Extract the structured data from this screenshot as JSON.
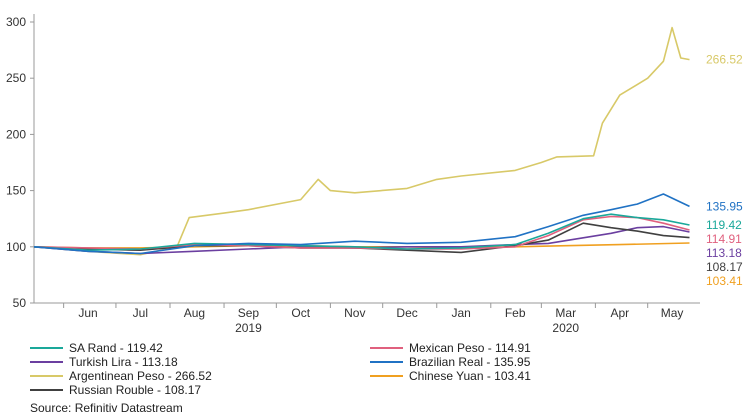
{
  "chart_data": {
    "type": "line",
    "x_months": [
      "Jun",
      "Jul",
      "Aug",
      "Sep",
      "Oct",
      "Nov",
      "Dec",
      "Jan",
      "Feb",
      "Mar",
      "Apr",
      "May"
    ],
    "x_years": [
      "2019",
      "2020"
    ],
    "ylim": [
      50,
      300
    ],
    "yticks": [
      "50",
      "100",
      "150",
      "200",
      "250",
      "300"
    ],
    "grid": false,
    "legend_position": "bottom",
    "series": [
      {
        "name": "SA Rand - 119.42",
        "end_label": "119.42",
        "color": "#1aa89a",
        "points": [
          [
            "2019-05-15",
            100
          ],
          [
            "2019-06-15",
            97
          ],
          [
            "2019-07-15",
            98
          ],
          [
            "2019-08-15",
            103
          ],
          [
            "2019-09-15",
            102
          ],
          [
            "2019-10-15",
            101
          ],
          [
            "2019-11-15",
            100
          ],
          [
            "2019-12-15",
            98
          ],
          [
            "2020-01-15",
            99
          ],
          [
            "2020-02-15",
            102
          ],
          [
            "2020-03-05",
            112
          ],
          [
            "2020-03-25",
            125
          ],
          [
            "2020-04-10",
            129
          ],
          [
            "2020-04-25",
            126
          ],
          [
            "2020-05-10",
            124
          ],
          [
            "2020-05-25",
            119.42
          ]
        ]
      },
      {
        "name": "Mexican Peso - 114.91",
        "end_label": "114.91",
        "color": "#e0607e",
        "points": [
          [
            "2019-05-15",
            100
          ],
          [
            "2019-06-15",
            99
          ],
          [
            "2019-07-15",
            98
          ],
          [
            "2019-08-15",
            102
          ],
          [
            "2019-09-15",
            101
          ],
          [
            "2019-10-15",
            99
          ],
          [
            "2019-11-15",
            99
          ],
          [
            "2019-12-15",
            98
          ],
          [
            "2020-01-15",
            98
          ],
          [
            "2020-02-15",
            100
          ],
          [
            "2020-03-05",
            110
          ],
          [
            "2020-03-25",
            124
          ],
          [
            "2020-04-10",
            127
          ],
          [
            "2020-04-25",
            126
          ],
          [
            "2020-05-10",
            121
          ],
          [
            "2020-05-25",
            114.91
          ]
        ]
      },
      {
        "name": "Turkish Lira - 113.18",
        "end_label": "113.18",
        "color": "#6b3fa0",
        "points": [
          [
            "2019-05-15",
            100
          ],
          [
            "2019-06-15",
            96
          ],
          [
            "2019-07-15",
            94
          ],
          [
            "2019-08-15",
            96
          ],
          [
            "2019-09-15",
            98
          ],
          [
            "2019-10-15",
            100
          ],
          [
            "2019-11-15",
            99
          ],
          [
            "2019-12-15",
            100
          ],
          [
            "2020-01-15",
            100
          ],
          [
            "2020-02-15",
            102
          ],
          [
            "2020-03-05",
            103
          ],
          [
            "2020-03-25",
            108
          ],
          [
            "2020-04-10",
            112
          ],
          [
            "2020-04-25",
            117
          ],
          [
            "2020-05-10",
            118
          ],
          [
            "2020-05-25",
            113.18
          ]
        ]
      },
      {
        "name": "Brazilian Real - 135.95",
        "end_label": "135.95",
        "color": "#2072c4",
        "points": [
          [
            "2019-05-15",
            100
          ],
          [
            "2019-06-15",
            96
          ],
          [
            "2019-07-15",
            94
          ],
          [
            "2019-08-15",
            101
          ],
          [
            "2019-09-15",
            103
          ],
          [
            "2019-10-15",
            102
          ],
          [
            "2019-11-15",
            105
          ],
          [
            "2019-12-15",
            103
          ],
          [
            "2020-01-15",
            104
          ],
          [
            "2020-02-15",
            109
          ],
          [
            "2020-03-05",
            118
          ],
          [
            "2020-03-25",
            128
          ],
          [
            "2020-04-10",
            133
          ],
          [
            "2020-04-25",
            138
          ],
          [
            "2020-05-10",
            147
          ],
          [
            "2020-05-25",
            135.95
          ]
        ]
      },
      {
        "name": "Argentinean Peso - 266.52",
        "end_label": "266.52",
        "color": "#d8c968",
        "points": [
          [
            "2019-05-15",
            100
          ],
          [
            "2019-06-15",
            96
          ],
          [
            "2019-07-15",
            93
          ],
          [
            "2019-08-05",
            100
          ],
          [
            "2019-08-12",
            126
          ],
          [
            "2019-09-01",
            130
          ],
          [
            "2019-09-15",
            133
          ],
          [
            "2019-10-15",
            142
          ],
          [
            "2019-10-25",
            160
          ],
          [
            "2019-11-01",
            150
          ],
          [
            "2019-11-15",
            148
          ],
          [
            "2019-12-15",
            152
          ],
          [
            "2020-01-01",
            160
          ],
          [
            "2020-01-15",
            163
          ],
          [
            "2020-02-15",
            168
          ],
          [
            "2020-03-01",
            175
          ],
          [
            "2020-03-10",
            180
          ],
          [
            "2020-03-31",
            181
          ],
          [
            "2020-04-05",
            210
          ],
          [
            "2020-04-15",
            235
          ],
          [
            "2020-05-01",
            250
          ],
          [
            "2020-05-10",
            265
          ],
          [
            "2020-05-15",
            295
          ],
          [
            "2020-05-20",
            268
          ],
          [
            "2020-05-25",
            266.52
          ]
        ]
      },
      {
        "name": "Chinese Yuan - 103.41",
        "end_label": "103.41",
        "color": "#f0a020",
        "points": [
          [
            "2019-05-15",
            100
          ],
          [
            "2019-06-15",
            99
          ],
          [
            "2019-07-15",
            99
          ],
          [
            "2019-08-15",
            100
          ],
          [
            "2019-09-15",
            101
          ],
          [
            "2019-10-15",
            101
          ],
          [
            "2019-11-15",
            100
          ],
          [
            "2019-12-15",
            100
          ],
          [
            "2020-01-15",
            99
          ],
          [
            "2020-02-15",
            100
          ],
          [
            "2020-03-15",
            101
          ],
          [
            "2020-04-15",
            102
          ],
          [
            "2020-05-25",
            103.41
          ]
        ]
      },
      {
        "name": "Russian Rouble - 108.17",
        "end_label": "108.17",
        "color": "#404040",
        "points": [
          [
            "2019-05-15",
            100
          ],
          [
            "2019-06-15",
            98
          ],
          [
            "2019-07-15",
            97
          ],
          [
            "2019-08-15",
            101
          ],
          [
            "2019-09-15",
            101
          ],
          [
            "2019-10-15",
            99
          ],
          [
            "2019-11-15",
            99
          ],
          [
            "2019-12-15",
            97
          ],
          [
            "2020-01-15",
            95
          ],
          [
            "2020-02-15",
            101
          ],
          [
            "2020-03-05",
            106
          ],
          [
            "2020-03-25",
            121
          ],
          [
            "2020-04-10",
            117
          ],
          [
            "2020-04-25",
            114
          ],
          [
            "2020-05-10",
            110
          ],
          [
            "2020-05-25",
            108.17
          ]
        ]
      }
    ]
  },
  "source": "Source: Refinitiv Datastream"
}
